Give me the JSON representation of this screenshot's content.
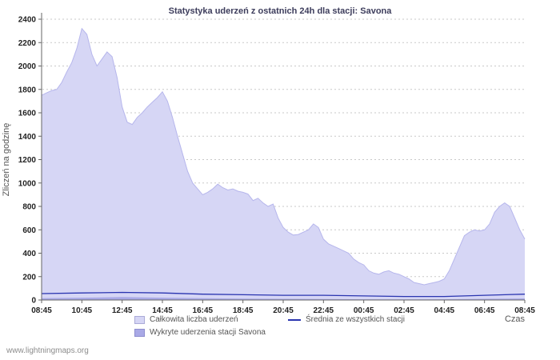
{
  "chart_data": {
    "type": "area",
    "title": "Statystyka uderzeń z ostatnich 24h dla stacji: Savona",
    "xlabel": "Czas",
    "ylabel": "Zliczeń na godzinę",
    "ylim": [
      0,
      2400
    ],
    "y_tick_step": 200,
    "grid": "horizontal-dotted",
    "legend_position": "bottom",
    "x_ticks": [
      "08:45",
      "10:45",
      "12:45",
      "14:45",
      "16:45",
      "18:45",
      "20:45",
      "22:45",
      "00:45",
      "02:45",
      "04:45",
      "06:45",
      "08:45"
    ],
    "colors": {
      "grid": "#c9c9c9",
      "axis": "#666666",
      "tick_text": "#222222",
      "axis_title": "#555555"
    },
    "series": [
      {
        "name": "Całkowita liczba uderzeń",
        "type": "area",
        "color": "#d6d6f5",
        "edge": "#b6b6ec",
        "values": [
          1750,
          1770,
          1790,
          1800,
          1860,
          1950,
          2030,
          2150,
          2320,
          2270,
          2100,
          2000,
          2060,
          2120,
          2080,
          1900,
          1650,
          1520,
          1500,
          1560,
          1600,
          1650,
          1690,
          1730,
          1780,
          1700,
          1560,
          1400,
          1250,
          1100,
          1000,
          950,
          900,
          920,
          950,
          990,
          960,
          940,
          950,
          930,
          920,
          905,
          850,
          870,
          830,
          800,
          820,
          700,
          620,
          580,
          555,
          560,
          580,
          600,
          650,
          620,
          520,
          480,
          460,
          440,
          420,
          400,
          350,
          320,
          300,
          250,
          230,
          220,
          240,
          250,
          230,
          220,
          200,
          180,
          150,
          140,
          130,
          140,
          150,
          160,
          180,
          250,
          350,
          450,
          550,
          580,
          600,
          590,
          600,
          650,
          750,
          800,
          830,
          800,
          700,
          600,
          520
        ]
      },
      {
        "name": "Wykryte uderzenia stacji Savona",
        "type": "area",
        "color": "#a9a9e6",
        "values": [
          15,
          20,
          25,
          20,
          15,
          12,
          10,
          8,
          6,
          5,
          6,
          10,
          14
        ]
      },
      {
        "name": "Średnia ze wszystkich stacji",
        "type": "line",
        "color": "#2a35b0",
        "values": [
          55,
          60,
          65,
          60,
          50,
          45,
          40,
          40,
          35,
          30,
          30,
          40,
          50
        ]
      }
    ]
  },
  "footer": {
    "link": "www.lightningmaps.org"
  }
}
